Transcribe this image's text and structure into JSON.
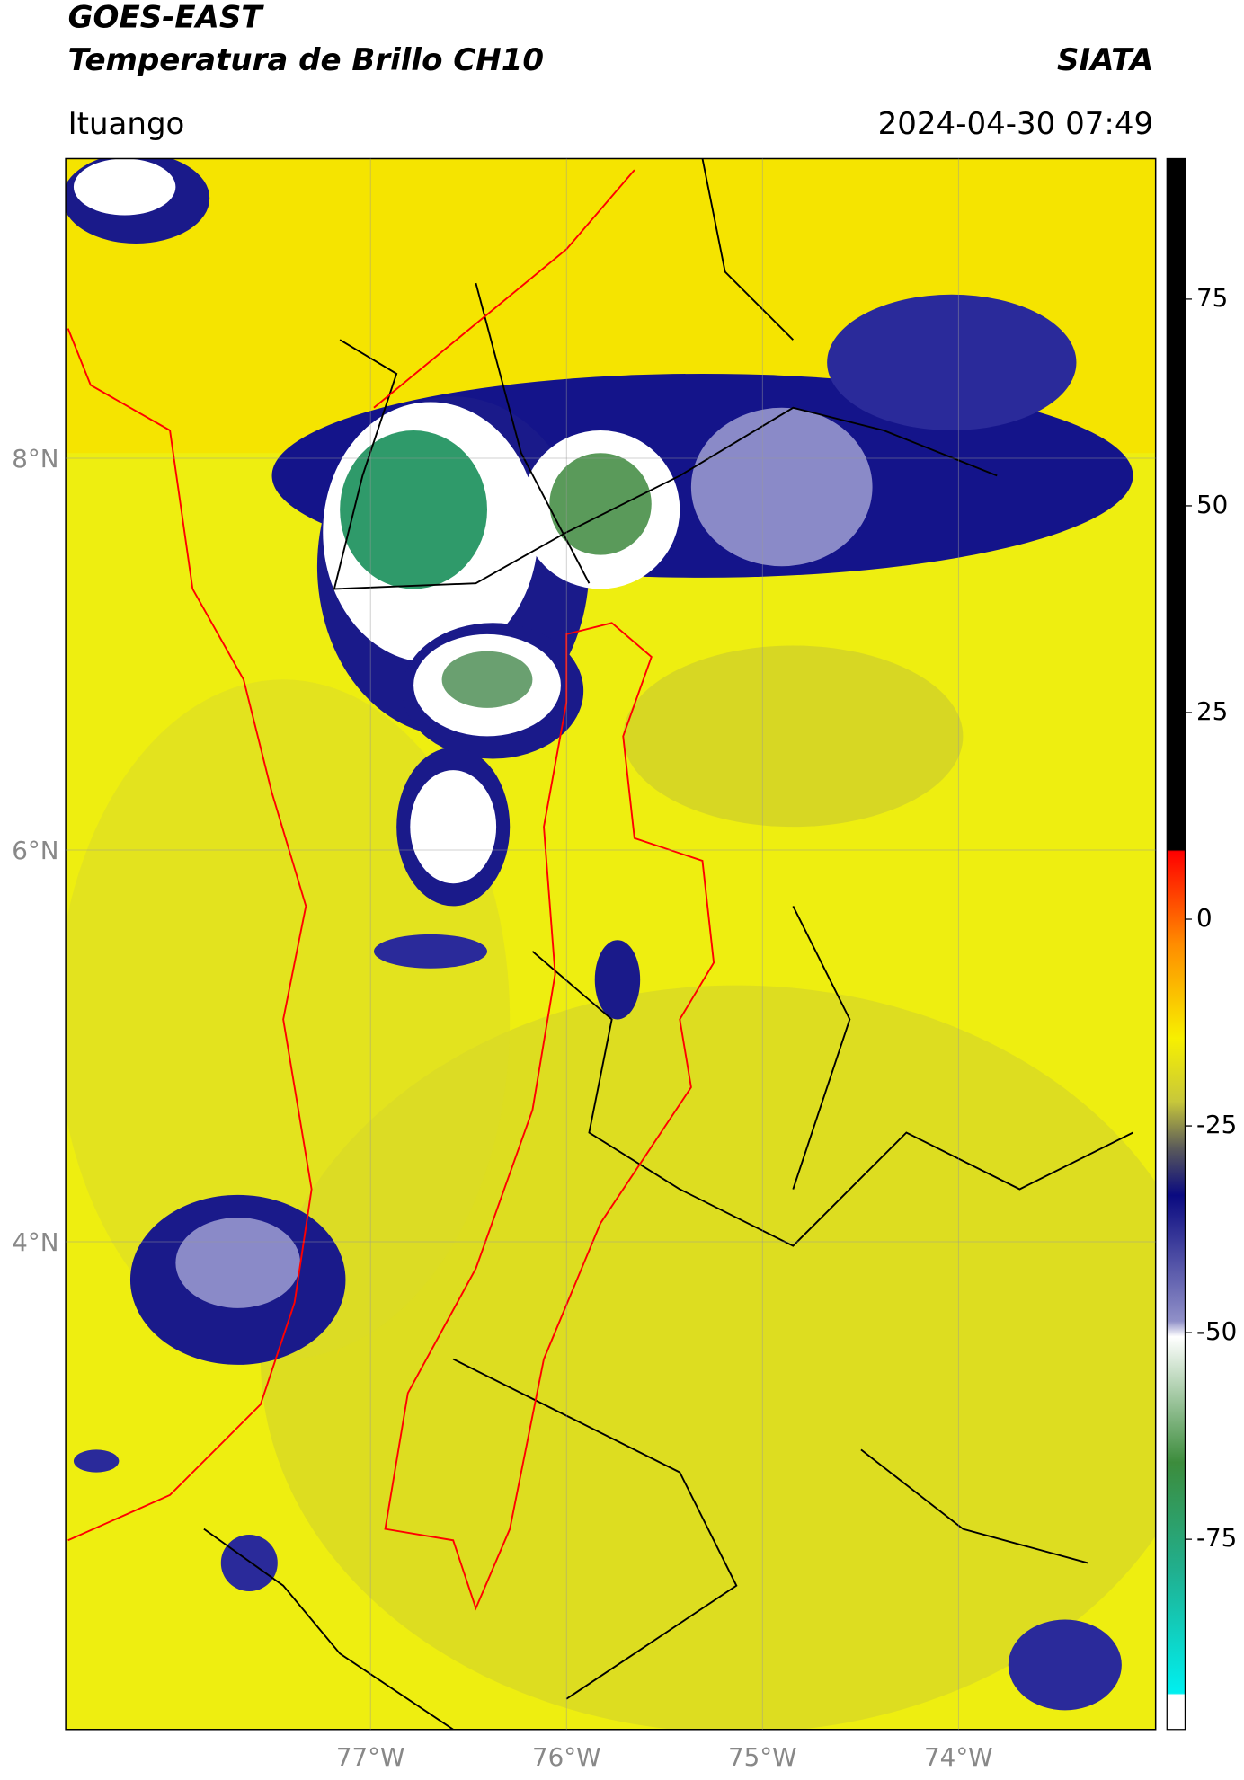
{
  "header": {
    "satellite": "GOES-EAST",
    "product": "Temperatura de Brillo CH10",
    "source": "SIATA",
    "location": "Ituango",
    "datetime": "2024-04-30 07:49"
  },
  "map": {
    "lonlim": [
      -78.555,
      -72.994
    ],
    "latlim": [
      1.51,
      9.53
    ],
    "lonticks": [
      {
        "value": -77,
        "label": "77°W"
      },
      {
        "value": -76,
        "label": "76°W"
      },
      {
        "value": -75,
        "label": "75°W"
      },
      {
        "value": -74,
        "label": "74°W"
      }
    ],
    "latticks": [
      {
        "value": 8,
        "label": "8°N"
      },
      {
        "value": 6,
        "label": "6°N"
      },
      {
        "value": 4,
        "label": "4°N"
      }
    ]
  },
  "colorbar": {
    "lim": [
      -98,
      92
    ],
    "ticks": [
      75,
      50,
      25,
      0,
      -25,
      -50,
      -75
    ]
  }
}
